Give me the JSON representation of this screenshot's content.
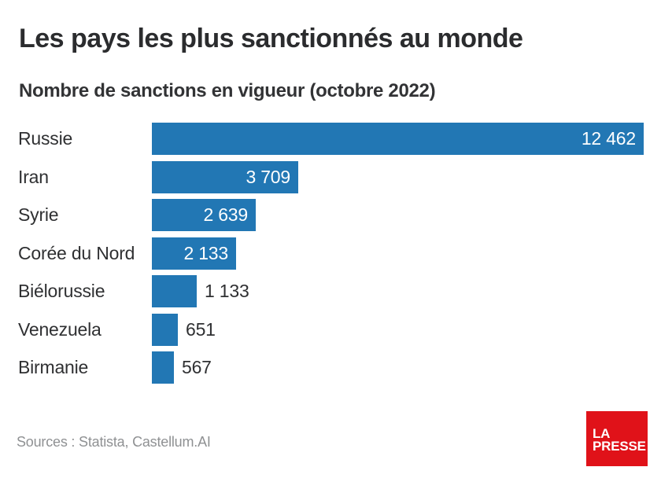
{
  "header": {
    "title": "Les pays les plus sanctionnés au monde",
    "subtitle": "Nombre de sanctions en vigueur (octobre 2022)"
  },
  "chart_data": {
    "type": "bar",
    "orientation": "horizontal",
    "title": "Les pays les plus sanctionnés au monde",
    "subtitle": "Nombre de sanctions en vigueur (octobre 2022)",
    "categories": [
      "Russie",
      "Iran",
      "Syrie",
      "Corée du Nord",
      "Biélorussie",
      "Venezuela",
      "Birmanie"
    ],
    "values": [
      12462,
      3709,
      2639,
      2133,
      1133,
      651,
      567
    ],
    "value_labels": [
      "12 462",
      "3 709",
      "2 639",
      "2 133",
      "1 133",
      "651",
      "567"
    ],
    "label_inside": [
      true,
      true,
      true,
      true,
      false,
      false,
      false
    ],
    "xmax": 12462,
    "xlabel": "",
    "ylabel": "",
    "grid": false,
    "legend": false,
    "bar_color": "#2277b4"
  },
  "footer": {
    "source": "Sources : Statista, Castellum.AI"
  },
  "logo": {
    "line1": "LA",
    "line2": "PRESSE",
    "background": "#e01219",
    "text_color": "#ffffff"
  },
  "colors": {
    "background": "#ffffff",
    "title_text": "#2b2c2e",
    "label_text": "#2f3032",
    "value_inside_text": "#ffffff",
    "source_text": "#8f9193",
    "bar": "#2277b4"
  }
}
